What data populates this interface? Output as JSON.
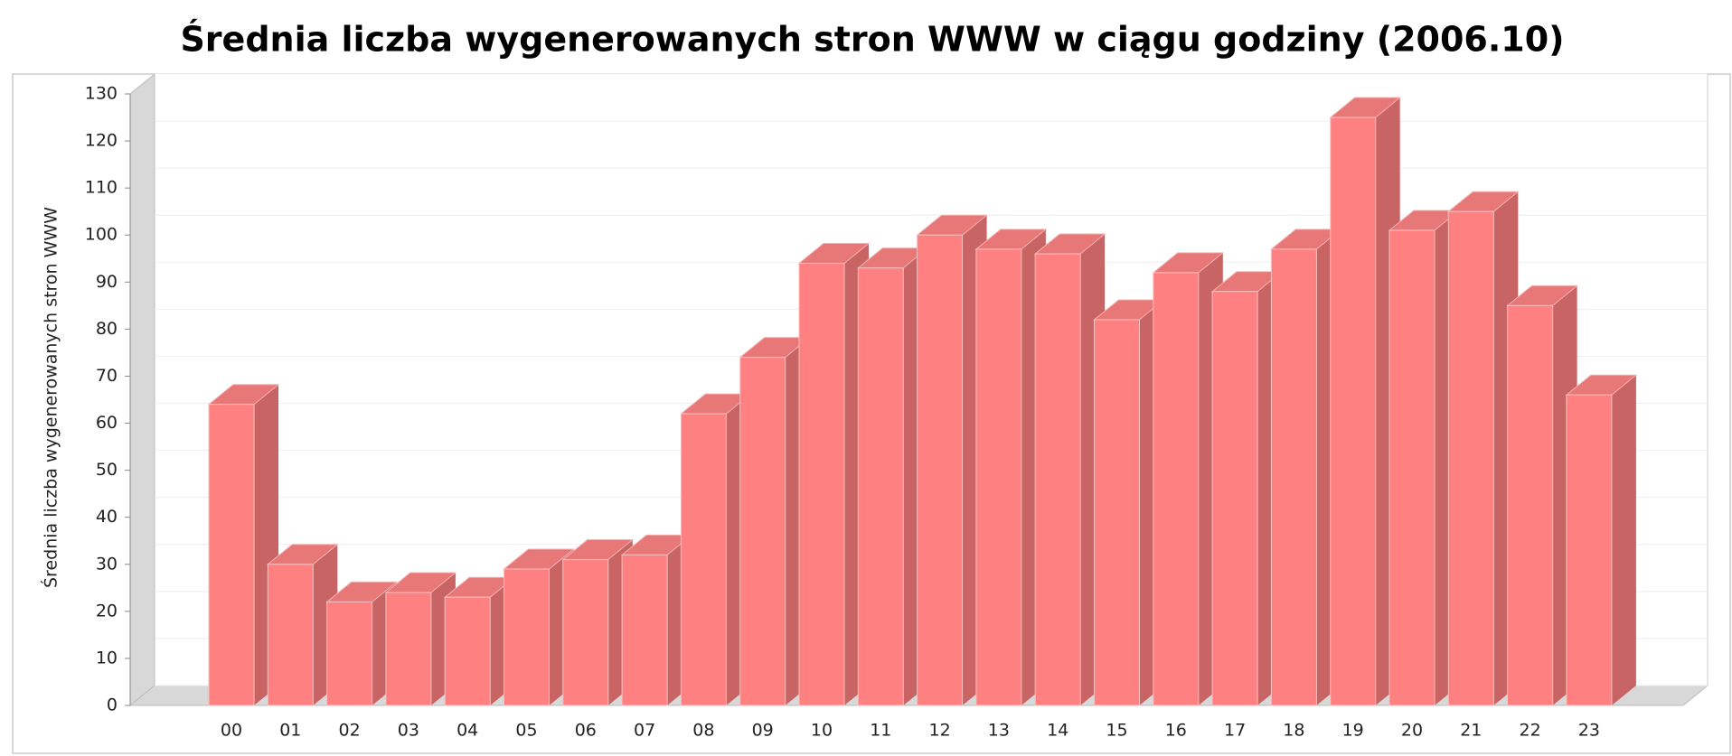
{
  "chart_data": {
    "type": "bar3d",
    "title": "Średnia liczba wygenerowanych stron WWW w ciągu godziny (2006.10)",
    "y_label": "Średnia liczba wygenerowanych stron WWW",
    "categories": [
      "00",
      "01",
      "02",
      "03",
      "04",
      "05",
      "06",
      "07",
      "08",
      "09",
      "10",
      "11",
      "12",
      "13",
      "14",
      "15",
      "16",
      "17",
      "18",
      "19",
      "20",
      "21",
      "22",
      "23"
    ],
    "values": [
      64,
      30,
      22,
      24,
      23,
      29,
      31,
      32,
      62,
      74,
      94,
      93,
      100,
      97,
      96,
      82,
      92,
      88,
      97,
      125,
      101,
      105,
      85,
      66
    ],
    "color": "#ff8080",
    "ylim": [
      0,
      130
    ],
    "yticks": [
      0,
      10,
      20,
      30,
      40,
      50,
      60,
      70,
      80,
      90,
      100,
      110,
      120,
      130
    ],
    "grid": true
  }
}
